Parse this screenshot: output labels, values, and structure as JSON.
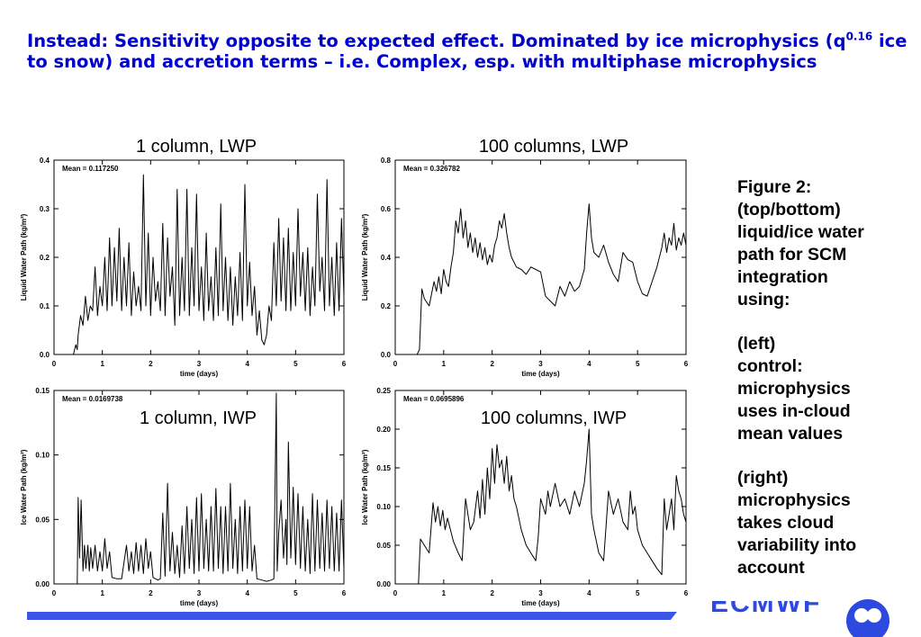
{
  "headline": {
    "part1": "Instead: Sensitivity opposite to expected effect. Dominated by ice microphysics (q",
    "exponent": "0.16",
    "part2": " ice to snow) and accretion terms – i.e. Complex, esp. with multiphase microphysics"
  },
  "caption": {
    "para1": "Figure 2:\n(top/bottom)\nliquid/ice water\npath for SCM\nintegration\nusing:",
    "para2": "(left)\ncontrol:\nmicrophysics\nuses in-cloud\nmean values",
    "para3": "(right)\nmicrophysics\ntakes cloud\nvariability into\naccount"
  },
  "footer": {
    "logo_text": "ECMWF"
  },
  "colors": {
    "headline": "#0000cc",
    "footer_bar": "#3b55e6",
    "logo": "#2d49e0"
  },
  "chart_data": [
    {
      "id": "lwp1",
      "type": "line",
      "title": "1 column, LWP",
      "annotation": "Mean = 0.117250",
      "xlabel": "time (days)",
      "ylabel": "Liquid Water Path (kg/m²)",
      "xlim": [
        0,
        6
      ],
      "ylim": [
        0,
        0.4
      ],
      "xticks": [
        "0",
        "1",
        "2",
        "3",
        "4",
        "5",
        "6"
      ],
      "yticks": [
        "0.0",
        "0.1",
        "0.2",
        "0.3",
        "0.4"
      ],
      "x": [
        0,
        0.4,
        0.45,
        0.48,
        0.5,
        0.55,
        0.6,
        0.65,
        0.7,
        0.75,
        0.8,
        0.85,
        0.9,
        0.95,
        1.0,
        1.05,
        1.1,
        1.15,
        1.2,
        1.25,
        1.3,
        1.35,
        1.4,
        1.45,
        1.5,
        1.55,
        1.6,
        1.65,
        1.7,
        1.75,
        1.8,
        1.85,
        1.9,
        1.95,
        2.0,
        2.05,
        2.1,
        2.15,
        2.2,
        2.25,
        2.3,
        2.35,
        2.4,
        2.45,
        2.5,
        2.55,
        2.6,
        2.65,
        2.7,
        2.75,
        2.8,
        2.85,
        2.9,
        2.95,
        3.0,
        3.05,
        3.1,
        3.15,
        3.2,
        3.25,
        3.3,
        3.35,
        3.4,
        3.45,
        3.5,
        3.55,
        3.6,
        3.65,
        3.7,
        3.75,
        3.8,
        3.85,
        3.9,
        3.95,
        4.0,
        4.05,
        4.1,
        4.15,
        4.2,
        4.25,
        4.3,
        4.35,
        4.4,
        4.45,
        4.5,
        4.55,
        4.6,
        4.65,
        4.7,
        4.75,
        4.8,
        4.85,
        4.9,
        4.95,
        5.0,
        5.05,
        5.1,
        5.15,
        5.2,
        5.25,
        5.3,
        5.35,
        5.4,
        5.45,
        5.5,
        5.55,
        5.6,
        5.65,
        5.7,
        5.75,
        5.8,
        5.85,
        5.9,
        5.95,
        6.0
      ],
      "y": [
        0.0,
        0.0,
        0.02,
        0.01,
        0.04,
        0.08,
        0.06,
        0.12,
        0.07,
        0.1,
        0.09,
        0.18,
        0.08,
        0.14,
        0.1,
        0.2,
        0.09,
        0.24,
        0.1,
        0.22,
        0.11,
        0.26,
        0.09,
        0.2,
        0.1,
        0.23,
        0.08,
        0.17,
        0.1,
        0.14,
        0.09,
        0.37,
        0.1,
        0.25,
        0.08,
        0.2,
        0.11,
        0.15,
        0.09,
        0.27,
        0.08,
        0.24,
        0.12,
        0.18,
        0.06,
        0.34,
        0.08,
        0.2,
        0.09,
        0.34,
        0.08,
        0.22,
        0.1,
        0.33,
        0.09,
        0.18,
        0.07,
        0.25,
        0.09,
        0.16,
        0.07,
        0.22,
        0.08,
        0.31,
        0.09,
        0.2,
        0.07,
        0.18,
        0.06,
        0.16,
        0.08,
        0.21,
        0.07,
        0.35,
        0.1,
        0.19,
        0.08,
        0.14,
        0.04,
        0.09,
        0.03,
        0.02,
        0.04,
        0.1,
        0.07,
        0.23,
        0.1,
        0.28,
        0.11,
        0.24,
        0.09,
        0.26,
        0.09,
        0.21,
        0.1,
        0.3,
        0.12,
        0.21,
        0.09,
        0.22,
        0.08,
        0.18,
        0.1,
        0.33,
        0.13,
        0.2,
        0.09,
        0.36,
        0.1,
        0.2,
        0.08,
        0.23,
        0.09,
        0.28,
        0.12
      ]
    },
    {
      "id": "lwp100",
      "type": "line",
      "title": "100 columns, LWP",
      "annotation": "Mean = 0.326782",
      "xlabel": "time (days)",
      "ylabel": "Liquid Water Path (kg/m²)",
      "xlim": [
        0,
        6
      ],
      "ylim": [
        0,
        0.8
      ],
      "xticks": [
        "0",
        "1",
        "2",
        "3",
        "4",
        "5",
        "6"
      ],
      "yticks": [
        "0.0",
        "0.2",
        "0.4",
        "0.6",
        "0.8"
      ],
      "x": [
        0,
        0.45,
        0.5,
        0.55,
        0.6,
        0.7,
        0.8,
        0.85,
        0.9,
        0.95,
        1.0,
        1.05,
        1.1,
        1.15,
        1.2,
        1.25,
        1.3,
        1.35,
        1.4,
        1.45,
        1.5,
        1.55,
        1.6,
        1.65,
        1.7,
        1.75,
        1.8,
        1.85,
        1.9,
        1.95,
        2.0,
        2.05,
        2.1,
        2.15,
        2.2,
        2.25,
        2.3,
        2.35,
        2.4,
        2.45,
        2.5,
        2.6,
        2.7,
        2.8,
        2.9,
        3.0,
        3.1,
        3.2,
        3.3,
        3.4,
        3.5,
        3.6,
        3.7,
        3.8,
        3.9,
        3.95,
        4.0,
        4.05,
        4.1,
        4.2,
        4.3,
        4.4,
        4.5,
        4.6,
        4.7,
        4.8,
        4.9,
        5.0,
        5.1,
        5.2,
        5.3,
        5.4,
        5.5,
        5.55,
        5.6,
        5.65,
        5.7,
        5.75,
        5.8,
        5.85,
        5.9,
        5.95,
        6.0
      ],
      "y": [
        0.0,
        0.0,
        0.02,
        0.27,
        0.23,
        0.2,
        0.3,
        0.26,
        0.32,
        0.25,
        0.35,
        0.3,
        0.28,
        0.36,
        0.42,
        0.55,
        0.5,
        0.6,
        0.48,
        0.55,
        0.44,
        0.5,
        0.42,
        0.48,
        0.4,
        0.46,
        0.39,
        0.44,
        0.37,
        0.41,
        0.38,
        0.45,
        0.48,
        0.55,
        0.52,
        0.58,
        0.5,
        0.44,
        0.4,
        0.38,
        0.36,
        0.35,
        0.33,
        0.36,
        0.35,
        0.34,
        0.24,
        0.22,
        0.2,
        0.28,
        0.24,
        0.3,
        0.26,
        0.28,
        0.35,
        0.5,
        0.62,
        0.48,
        0.42,
        0.4,
        0.45,
        0.38,
        0.33,
        0.3,
        0.42,
        0.39,
        0.38,
        0.3,
        0.25,
        0.24,
        0.3,
        0.36,
        0.44,
        0.5,
        0.42,
        0.48,
        0.45,
        0.54,
        0.43,
        0.48,
        0.45,
        0.5,
        0.45
      ]
    },
    {
      "id": "iwp1",
      "type": "line",
      "title": "1 column, IWP",
      "annotation": "Mean = 0.0169738",
      "xlabel": "time (days)",
      "ylabel": "Ice Water Path (kg/m²)",
      "xlim": [
        0,
        6
      ],
      "ylim": [
        0,
        0.15
      ],
      "xticks": [
        "0",
        "1",
        "2",
        "3",
        "4",
        "5",
        "6"
      ],
      "yticks": [
        "0.00",
        "0.05",
        "0.10",
        "0.15"
      ],
      "x": [
        0,
        0.48,
        0.5,
        0.53,
        0.56,
        0.6,
        0.63,
        0.66,
        0.7,
        0.73,
        0.76,
        0.8,
        0.85,
        0.9,
        0.95,
        1.0,
        1.05,
        1.1,
        1.15,
        1.2,
        1.3,
        1.4,
        1.5,
        1.55,
        1.6,
        1.65,
        1.7,
        1.75,
        1.8,
        1.85,
        1.9,
        1.95,
        2.0,
        2.05,
        2.1,
        2.15,
        2.2,
        2.25,
        2.3,
        2.35,
        2.4,
        2.45,
        2.5,
        2.55,
        2.6,
        2.65,
        2.7,
        2.75,
        2.8,
        2.85,
        2.9,
        2.95,
        3.0,
        3.05,
        3.1,
        3.15,
        3.2,
        3.25,
        3.3,
        3.35,
        3.4,
        3.45,
        3.5,
        3.55,
        3.6,
        3.65,
        3.7,
        3.75,
        3.8,
        3.85,
        3.9,
        3.95,
        4.0,
        4.05,
        4.1,
        4.15,
        4.2,
        4.3,
        4.4,
        4.5,
        4.55,
        4.6,
        4.62,
        4.65,
        4.7,
        4.75,
        4.8,
        4.82,
        4.85,
        4.9,
        4.95,
        5.0,
        5.05,
        5.1,
        5.15,
        5.2,
        5.25,
        5.3,
        5.35,
        5.4,
        5.45,
        5.5,
        5.55,
        5.6,
        5.65,
        5.7,
        5.75,
        5.8,
        5.85,
        5.9,
        5.95,
        6.0
      ],
      "y": [
        0.0,
        0.0,
        0.067,
        0.02,
        0.065,
        0.01,
        0.03,
        0.012,
        0.03,
        0.01,
        0.028,
        0.012,
        0.03,
        0.01,
        0.025,
        0.01,
        0.035,
        0.012,
        0.025,
        0.005,
        0.004,
        0.004,
        0.03,
        0.01,
        0.025,
        0.008,
        0.032,
        0.01,
        0.03,
        0.008,
        0.035,
        0.012,
        0.025,
        0.005,
        0.004,
        0.003,
        0.004,
        0.055,
        0.006,
        0.078,
        0.01,
        0.04,
        0.008,
        0.03,
        0.005,
        0.045,
        0.008,
        0.06,
        0.012,
        0.05,
        0.008,
        0.067,
        0.01,
        0.07,
        0.012,
        0.05,
        0.01,
        0.06,
        0.01,
        0.074,
        0.012,
        0.06,
        0.008,
        0.06,
        0.01,
        0.078,
        0.012,
        0.05,
        0.008,
        0.06,
        0.01,
        0.065,
        0.012,
        0.06,
        0.01,
        0.03,
        0.004,
        0.003,
        0.002,
        0.003,
        0.004,
        0.148,
        0.01,
        0.04,
        0.065,
        0.02,
        0.05,
        0.015,
        0.11,
        0.02,
        0.075,
        0.015,
        0.07,
        0.012,
        0.06,
        0.01,
        0.05,
        0.008,
        0.07,
        0.01,
        0.065,
        0.012,
        0.055,
        0.01,
        0.065,
        0.012,
        0.06,
        0.01,
        0.055,
        0.01,
        0.065,
        0.012
      ]
    },
    {
      "id": "iwp100",
      "type": "line",
      "title": "100 columns, IWP",
      "annotation": "Mean = 0.0695896",
      "xlabel": "time (days)",
      "ylabel": "Ice Water Path (kg/m²)",
      "xlim": [
        0,
        6
      ],
      "ylim": [
        0,
        0.25
      ],
      "xticks": [
        "0",
        "1",
        "2",
        "3",
        "4",
        "5",
        "6"
      ],
      "yticks": [
        "0.00",
        "0.05",
        "0.10",
        "0.15",
        "0.20",
        "0.25"
      ],
      "x": [
        0,
        0.48,
        0.52,
        0.7,
        0.78,
        0.83,
        0.88,
        0.93,
        0.98,
        1.03,
        1.08,
        1.2,
        1.3,
        1.38,
        1.45,
        1.55,
        1.62,
        1.7,
        1.75,
        1.8,
        1.85,
        1.9,
        1.95,
        2.0,
        2.05,
        2.1,
        2.15,
        2.2,
        2.25,
        2.3,
        2.35,
        2.4,
        2.45,
        2.5,
        2.6,
        2.7,
        2.8,
        2.9,
        2.95,
        3.0,
        3.1,
        3.15,
        3.2,
        3.3,
        3.4,
        3.5,
        3.6,
        3.7,
        3.8,
        3.9,
        3.95,
        4.0,
        4.05,
        4.1,
        4.2,
        4.3,
        4.4,
        4.5,
        4.6,
        4.7,
        4.8,
        4.85,
        4.9,
        4.95,
        5.0,
        5.1,
        5.2,
        5.3,
        5.4,
        5.5,
        5.55,
        5.6,
        5.65,
        5.7,
        5.75,
        5.8,
        5.85,
        5.9,
        5.95,
        6.0
      ],
      "y": [
        0.0,
        0.0,
        0.058,
        0.04,
        0.105,
        0.08,
        0.1,
        0.075,
        0.095,
        0.07,
        0.085,
        0.055,
        0.04,
        0.03,
        0.11,
        0.07,
        0.08,
        0.12,
        0.085,
        0.135,
        0.09,
        0.15,
        0.11,
        0.175,
        0.13,
        0.18,
        0.15,
        0.16,
        0.13,
        0.165,
        0.12,
        0.14,
        0.11,
        0.1,
        0.07,
        0.05,
        0.04,
        0.03,
        0.06,
        0.11,
        0.09,
        0.12,
        0.1,
        0.13,
        0.1,
        0.11,
        0.09,
        0.12,
        0.1,
        0.13,
        0.16,
        0.2,
        0.09,
        0.07,
        0.04,
        0.03,
        0.12,
        0.09,
        0.11,
        0.08,
        0.07,
        0.12,
        0.09,
        0.1,
        0.07,
        0.05,
        0.04,
        0.03,
        0.02,
        0.012,
        0.11,
        0.07,
        0.09,
        0.11,
        0.07,
        0.14,
        0.12,
        0.11,
        0.09,
        0.08
      ]
    }
  ]
}
